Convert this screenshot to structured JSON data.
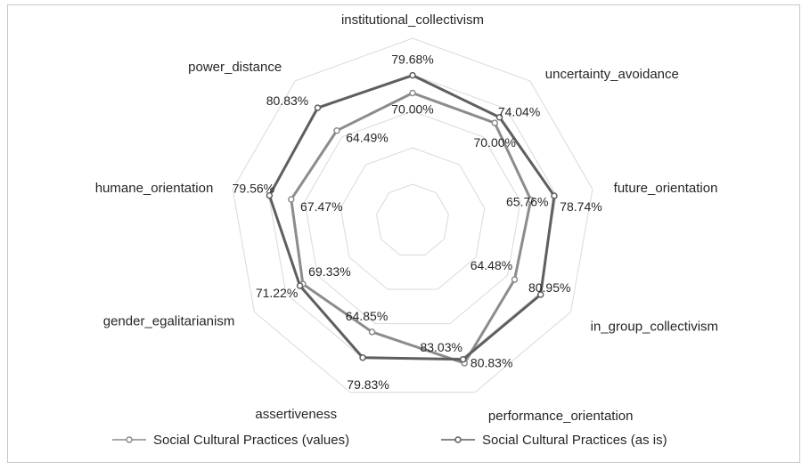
{
  "chart_data": {
    "type": "radar",
    "axes": [
      "institutional_collectivism",
      "uncertainty_avoidance",
      "future_orientation",
      "in_group_collectivism",
      "performance_orientation",
      "assertiveness",
      "gender_egalitarianism",
      "humane_orientation",
      "power_distance"
    ],
    "series": [
      {
        "name": "Social Cultural Practices  (values)",
        "values": [
          70.0,
          70.0,
          65.76,
          64.48,
          83.03,
          64.85,
          69.33,
          67.47,
          64.49
        ],
        "color": "#8c8c8c"
      },
      {
        "name": "Social Cultural Practices  (as is)",
        "values": [
          79.68,
          74.04,
          78.74,
          80.95,
          80.83,
          79.83,
          71.22,
          79.56,
          80.83
        ],
        "color": "#5f5f5f"
      }
    ],
    "value_labels": {
      "values": [
        "70.00%",
        "70.00%",
        "65.76%",
        "64.48%",
        "83.03%",
        "64.85%",
        "69.33%",
        "67.47%",
        "64.49%"
      ],
      "as_is": [
        "79.68%",
        "74.04%",
        "78.74%",
        "80.95%",
        "80.83%",
        "79.83%",
        "71.22%",
        "79.56%",
        "80.83%"
      ]
    },
    "rlim": [
      0,
      100
    ],
    "grid": true,
    "legend_position": "bottom",
    "unit": "%"
  }
}
